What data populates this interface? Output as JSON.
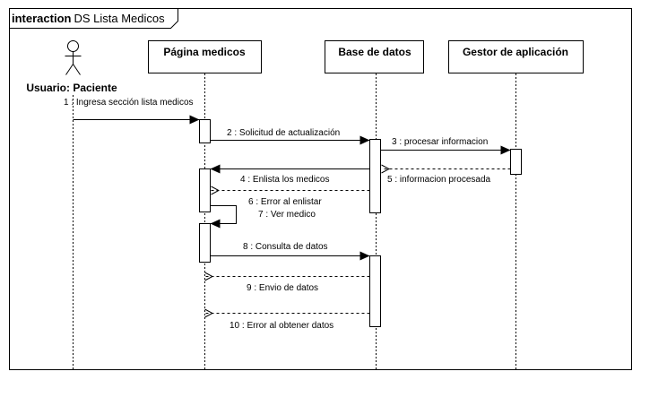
{
  "frame": {
    "keyword": "interaction",
    "name": "DS Lista Medicos"
  },
  "actor": {
    "label": "Usuario: Paciente",
    "icon": "stick-figure-icon"
  },
  "lifelines": [
    {
      "label": "Página medicos"
    },
    {
      "label": "Base de datos"
    },
    {
      "label": "Gestor de aplicación"
    }
  ],
  "messages": [
    {
      "label": "1 : Ingresa sección lista medicos"
    },
    {
      "label": "2 : Solicitud de actualización"
    },
    {
      "label": "3 : procesar informacion"
    },
    {
      "label": "4 : Enlista los medicos"
    },
    {
      "label": "5 : informacion procesada"
    },
    {
      "label": "6 : Error al enlistar"
    },
    {
      "label": "7 : Ver  medico"
    },
    {
      "label": "8 : Consulta de datos"
    },
    {
      "label": "9 : Envio de datos"
    },
    {
      "label": "10 : Error al obtener datos"
    }
  ]
}
